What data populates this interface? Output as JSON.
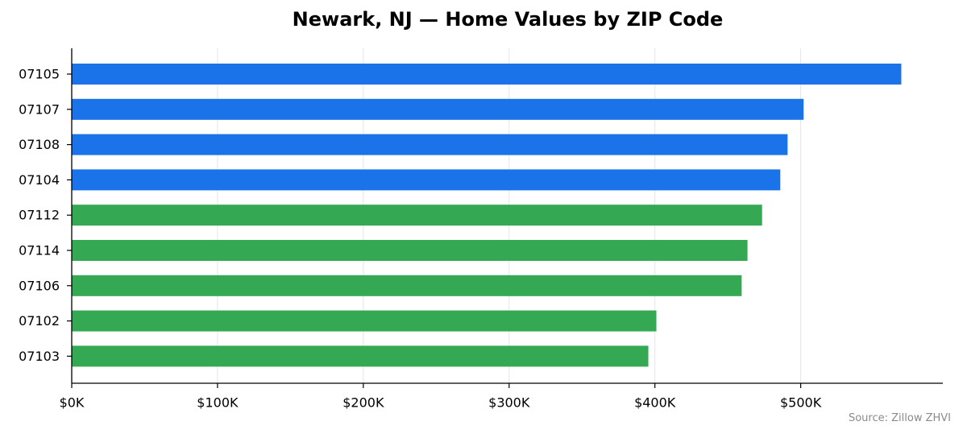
{
  "chart_data": {
    "type": "bar",
    "orientation": "horizontal",
    "title": "Newark, NJ — Home Values by ZIP Code",
    "xlabel": "",
    "ylabel": "",
    "categories": [
      "07105",
      "07107",
      "07108",
      "07104",
      "07112",
      "07114",
      "07106",
      "07102",
      "07103"
    ],
    "values": [
      569000,
      502000,
      491000,
      486000,
      473500,
      463500,
      459500,
      401000,
      395500
    ],
    "bar_colors": [
      "#1a73e8",
      "#1a73e8",
      "#1a73e8",
      "#1a73e8",
      "#34a853",
      "#34a853",
      "#34a853",
      "#34a853",
      "#34a853"
    ],
    "xlim": [
      0,
      597500
    ],
    "xticks": [
      0,
      100000,
      200000,
      300000,
      400000,
      500000
    ],
    "xtick_labels": [
      "$0K",
      "$100K",
      "$200K",
      "$300K",
      "$400K",
      "$500K"
    ],
    "grid": "vertical",
    "grid_color": "#e6e6e6",
    "legend": "none"
  },
  "source_note": "Source: Zillow ZHVI"
}
